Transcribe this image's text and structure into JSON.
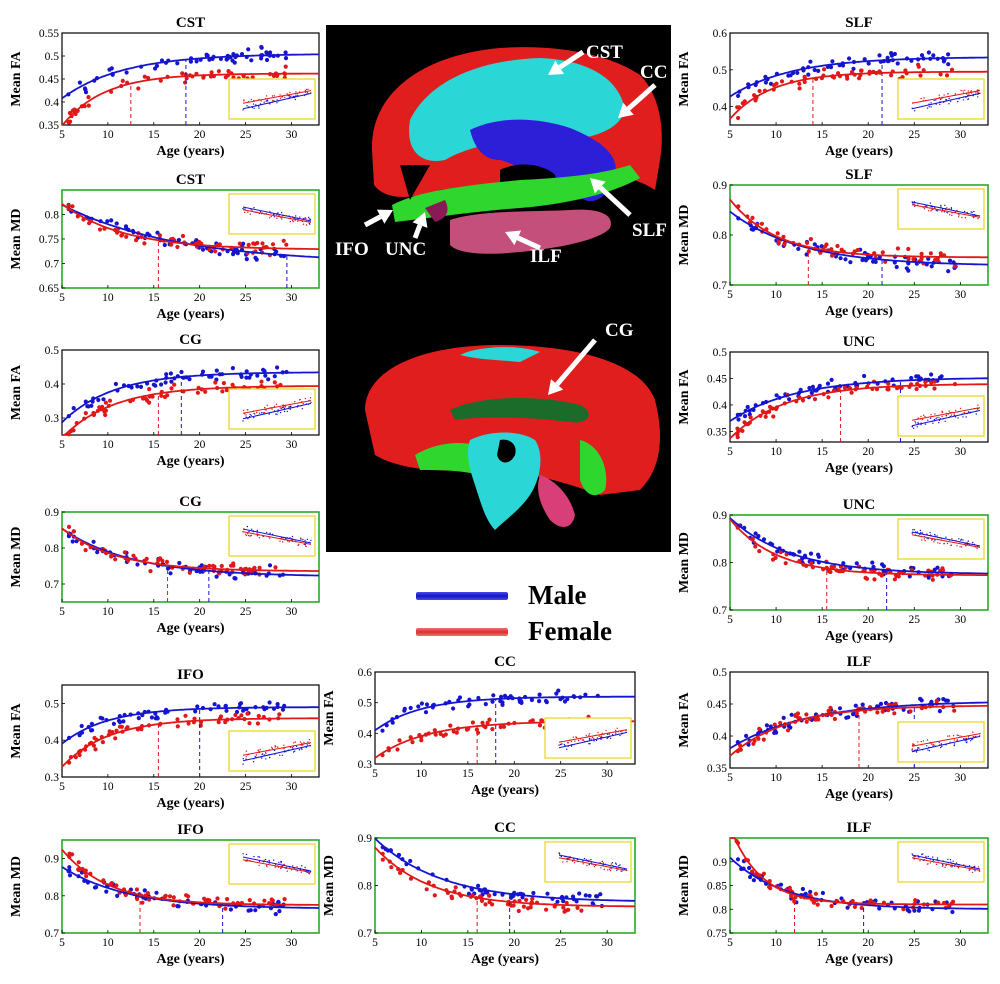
{
  "colors": {
    "male": "#1515d0",
    "female": "#e01818",
    "fa_frame": "#000000",
    "md_frame": "#29a829",
    "inset_frame": "#e8d82a"
  },
  "legend": {
    "male": "Male",
    "female": "Female"
  },
  "brain": {
    "labels": {
      "cst": "CST",
      "cc": "CC",
      "slf": "SLF",
      "ilf": "ILF",
      "unc": "UNC",
      "ifo": "IFO",
      "cg": "CG"
    }
  },
  "chart_data": [
    {
      "id": "cst-fa",
      "type": "scatter",
      "title": "CST",
      "ylabel": "Mean FA",
      "xlabel": "Age (years)",
      "xlim": [
        5,
        33
      ],
      "ylim": [
        0.35,
        0.55
      ],
      "yticks": [
        0.35,
        0.4,
        0.45,
        0.5,
        0.55
      ],
      "xticks": [
        5,
        10,
        15,
        20,
        25,
        30
      ],
      "series": [
        {
          "name": "Male",
          "asymptote": 0.505,
          "start": 0.415,
          "rate": 0.15,
          "plateau_age": 18.5
        },
        {
          "name": "Female",
          "asymptote": 0.462,
          "start": 0.36,
          "rate": 0.22,
          "plateau_age": 12.5
        }
      ]
    },
    {
      "id": "cst-md",
      "type": "scatter",
      "title": "CST",
      "ylabel": "Mean MD",
      "xlabel": "Age (years)",
      "xlim": [
        5,
        33
      ],
      "ylim": [
        0.65,
        0.85
      ],
      "yticks": [
        0.65,
        0.7,
        0.75,
        0.8
      ],
      "xticks": [
        5,
        10,
        15,
        20,
        25,
        30
      ],
      "series": [
        {
          "name": "Male",
          "asymptote": 0.7,
          "start": 0.815,
          "rate": 0.08,
          "plateau_age": 29.5
        },
        {
          "name": "Female",
          "asymptote": 0.728,
          "start": 0.815,
          "rate": 0.15,
          "plateau_age": 15.5
        }
      ]
    },
    {
      "id": "cg-fa",
      "type": "scatter",
      "title": "CG",
      "ylabel": "Mean FA",
      "xlabel": "Age (years)",
      "xlim": [
        5,
        33
      ],
      "ylim": [
        0.25,
        0.5
      ],
      "yticks": [
        0.3,
        0.4,
        0.5
      ],
      "xticks": [
        5,
        10,
        15,
        20,
        25,
        30
      ],
      "series": [
        {
          "name": "Male",
          "asymptote": 0.435,
          "start": 0.3,
          "rate": 0.18,
          "plateau_age": 18
        },
        {
          "name": "Female",
          "asymptote": 0.395,
          "start": 0.255,
          "rate": 0.18,
          "plateau_age": 15.5
        }
      ]
    },
    {
      "id": "cg-md",
      "type": "scatter",
      "title": "CG",
      "ylabel": "Mean MD",
      "xlabel": "Age (years)",
      "xlim": [
        5,
        33
      ],
      "ylim": [
        0.65,
        0.9
      ],
      "yticks": [
        0.7,
        0.8,
        0.9
      ],
      "xticks": [
        5,
        10,
        15,
        20,
        25,
        30
      ],
      "series": [
        {
          "name": "Male",
          "asymptote": 0.72,
          "start": 0.845,
          "rate": 0.13,
          "plateau_age": 21
        },
        {
          "name": "Female",
          "asymptote": 0.735,
          "start": 0.845,
          "rate": 0.17,
          "plateau_age": 16.5
        }
      ]
    },
    {
      "id": "ifo-fa",
      "type": "scatter",
      "title": "IFO",
      "ylabel": "Mean FA",
      "xlabel": "Age (years)",
      "xlim": [
        5,
        33
      ],
      "ylim": [
        0.3,
        0.55
      ],
      "yticks": [
        0.3,
        0.4,
        0.5
      ],
      "xticks": [
        5,
        10,
        15,
        20,
        25,
        30
      ],
      "series": [
        {
          "name": "Male",
          "asymptote": 0.49,
          "start": 0.4,
          "rate": 0.2,
          "plateau_age": 20
        },
        {
          "name": "Female",
          "asymptote": 0.46,
          "start": 0.34,
          "rate": 0.2,
          "plateau_age": 15.5
        }
      ]
    },
    {
      "id": "ifo-md",
      "type": "scatter",
      "title": "IFO",
      "ylabel": "Mean MD",
      "xlabel": "Age (years)",
      "xlim": [
        5,
        33
      ],
      "ylim": [
        0.7,
        0.95
      ],
      "yticks": [
        0.7,
        0.8,
        0.9
      ],
      "xticks": [
        5,
        10,
        15,
        20,
        25,
        30
      ],
      "series": [
        {
          "name": "Male",
          "asymptote": 0.765,
          "start": 0.87,
          "rate": 0.14,
          "plateau_age": 22.5
        },
        {
          "name": "Female",
          "asymptote": 0.775,
          "start": 0.91,
          "rate": 0.2,
          "plateau_age": 13.5
        }
      ]
    },
    {
      "id": "cc-fa",
      "type": "scatter",
      "title": "CC",
      "ylabel": "Mean FA",
      "xlabel": "Age (years)",
      "xlim": [
        5,
        33
      ],
      "ylim": [
        0.3,
        0.6
      ],
      "yticks": [
        0.3,
        0.4,
        0.5,
        0.6
      ],
      "xticks": [
        5,
        10,
        15,
        20,
        25,
        30
      ],
      "series": [
        {
          "name": "Male",
          "asymptote": 0.52,
          "start": 0.42,
          "rate": 0.2,
          "plateau_age": 18
        },
        {
          "name": "Female",
          "asymptote": 0.44,
          "start": 0.33,
          "rate": 0.18,
          "plateau_age": 16
        }
      ]
    },
    {
      "id": "cc-md",
      "type": "scatter",
      "title": "CC",
      "ylabel": "Mean MD",
      "xlabel": "Age (years)",
      "xlim": [
        5,
        33
      ],
      "ylim": [
        0.7,
        0.9
      ],
      "yticks": [
        0.7,
        0.8,
        0.9
      ],
      "xticks": [
        5,
        10,
        15,
        20,
        25,
        30
      ],
      "series": [
        {
          "name": "Male",
          "asymptote": 0.765,
          "start": 0.89,
          "rate": 0.14,
          "plateau_age": 19.5
        },
        {
          "name": "Female",
          "asymptote": 0.755,
          "start": 0.87,
          "rate": 0.17,
          "plateau_age": 16
        }
      ]
    },
    {
      "id": "ilf-fa",
      "type": "scatter",
      "title": "ILF",
      "ylabel": "Mean FA",
      "xlabel": "Age (years)",
      "xlim": [
        5,
        33
      ],
      "ylim": [
        0.35,
        0.5
      ],
      "yticks": [
        0.35,
        0.4,
        0.45,
        0.5
      ],
      "xticks": [
        5,
        10,
        15,
        20,
        25,
        30
      ],
      "series": [
        {
          "name": "Male",
          "asymptote": 0.455,
          "start": 0.385,
          "rate": 0.12,
          "plateau_age": 25
        },
        {
          "name": "Female",
          "asymptote": 0.448,
          "start": 0.375,
          "rate": 0.16,
          "plateau_age": 19
        }
      ]
    },
    {
      "id": "ilf-md",
      "type": "scatter",
      "title": "ILF",
      "ylabel": "Mean MD",
      "xlabel": "Age (years)",
      "xlim": [
        5,
        33
      ],
      "ylim": [
        0.75,
        0.95
      ],
      "yticks": [
        0.75,
        0.8,
        0.85,
        0.9
      ],
      "xticks": [
        5,
        10,
        15,
        20,
        25,
        30
      ],
      "series": [
        {
          "name": "Male",
          "asymptote": 0.8,
          "start": 0.9,
          "rate": 0.17,
          "plateau_age": 19.5
        },
        {
          "name": "Female",
          "asymptote": 0.81,
          "start": 0.95,
          "rate": 0.3,
          "plateau_age": 12
        }
      ]
    },
    {
      "id": "slf-fa",
      "type": "scatter",
      "title": "SLF",
      "ylabel": "Mean FA",
      "xlabel": "Age (years)",
      "xlim": [
        5,
        33
      ],
      "ylim": [
        0.35,
        0.6
      ],
      "yticks": [
        0.4,
        0.5,
        0.6
      ],
      "xticks": [
        5,
        10,
        15,
        20,
        25,
        30
      ],
      "series": [
        {
          "name": "Male",
          "asymptote": 0.535,
          "start": 0.435,
          "rate": 0.15,
          "plateau_age": 21.5
        },
        {
          "name": "Female",
          "asymptote": 0.495,
          "start": 0.38,
          "rate": 0.22,
          "plateau_age": 14
        }
      ]
    },
    {
      "id": "slf-md",
      "type": "scatter",
      "title": "SLF",
      "ylabel": "Mean MD",
      "xlabel": "Age (years)",
      "xlim": [
        5,
        33
      ],
      "ylim": [
        0.7,
        0.9
      ],
      "yticks": [
        0.7,
        0.8,
        0.9
      ],
      "xticks": [
        5,
        10,
        15,
        20,
        25,
        30
      ],
      "series": [
        {
          "name": "Male",
          "asymptote": 0.738,
          "start": 0.84,
          "rate": 0.13,
          "plateau_age": 21.5
        },
        {
          "name": "Female",
          "asymptote": 0.755,
          "start": 0.86,
          "rate": 0.2,
          "plateau_age": 13.5
        }
      ]
    },
    {
      "id": "unc-fa",
      "type": "scatter",
      "title": "UNC",
      "ylabel": "Mean FA",
      "xlabel": "Age (years)",
      "xlim": [
        5,
        33
      ],
      "ylim": [
        0.33,
        0.5
      ],
      "yticks": [
        0.35,
        0.4,
        0.45,
        0.5
      ],
      "xticks": [
        5,
        10,
        15,
        20,
        25,
        30
      ],
      "series": [
        {
          "name": "Male",
          "asymptote": 0.452,
          "start": 0.375,
          "rate": 0.14,
          "plateau_age": 23.5
        },
        {
          "name": "Female",
          "asymptote": 0.44,
          "start": 0.345,
          "rate": 0.17,
          "plateau_age": 17
        }
      ]
    },
    {
      "id": "unc-md",
      "type": "scatter",
      "title": "UNC",
      "ylabel": "Mean MD",
      "xlabel": "Age (years)",
      "xlim": [
        5,
        33
      ],
      "ylim": [
        0.7,
        0.9
      ],
      "yticks": [
        0.7,
        0.8,
        0.9
      ],
      "xticks": [
        5,
        10,
        15,
        20,
        25,
        30
      ],
      "series": [
        {
          "name": "Male",
          "asymptote": 0.775,
          "start": 0.885,
          "rate": 0.15,
          "plateau_age": 22
        },
        {
          "name": "Female",
          "asymptote": 0.773,
          "start": 0.88,
          "rate": 0.2,
          "plateau_age": 15.5
        }
      ]
    }
  ]
}
